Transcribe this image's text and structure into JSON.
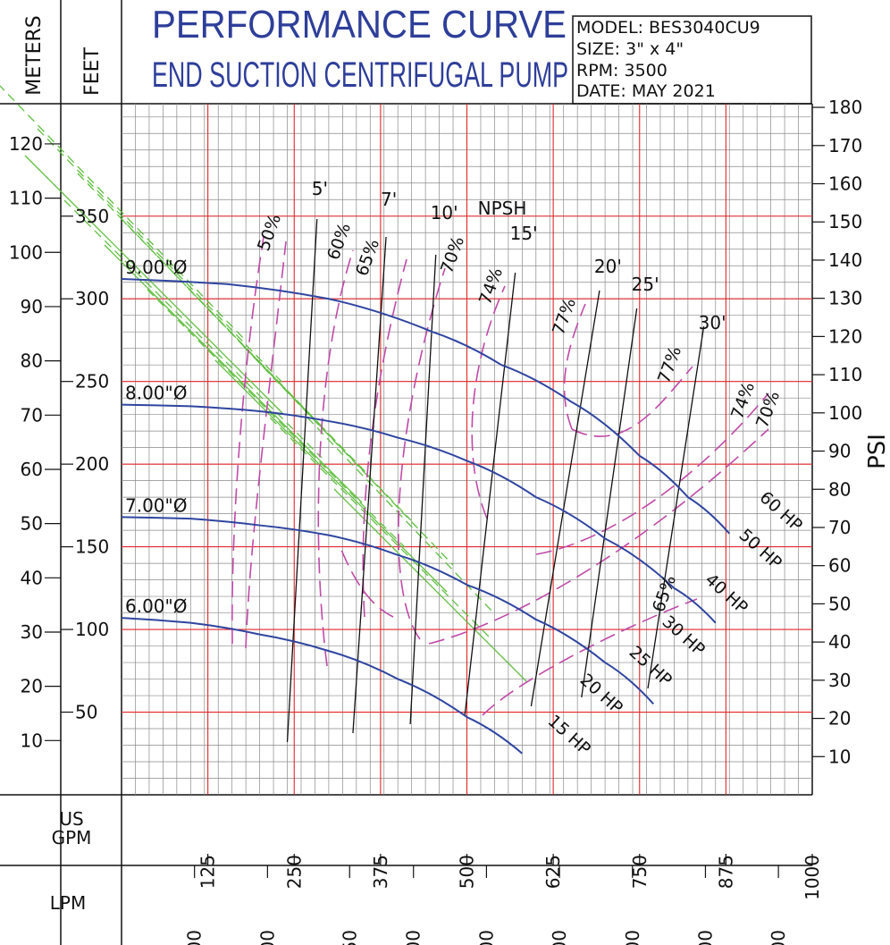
{
  "chart_data": {
    "type": "line",
    "title": "PERFORMANCE CURVE",
    "subtitle": "END SUCTION CENTRIFUGAL PUMP",
    "info": [
      "MODEL: BES3040CU9",
      "SIZE: 3\" x 4\"",
      "RPM: 3500",
      "DATE: MAY 2021"
    ],
    "axes": {
      "meters_label": "METERS",
      "feet_label": "FEET",
      "psi_label": "PSI",
      "gpm_label": [
        "US",
        "GPM"
      ],
      "lpm_label": "LPM",
      "gpm_range": [
        0,
        1000
      ],
      "feet_range": [
        0,
        418
      ],
      "meters_ticks": [
        10,
        20,
        30,
        40,
        50,
        60,
        70,
        80,
        90,
        100,
        110,
        120
      ],
      "feet_ticks": [
        50,
        100,
        150,
        200,
        250,
        300,
        350
      ],
      "psi_ticks": [
        10,
        20,
        30,
        40,
        50,
        60,
        70,
        80,
        90,
        100,
        110,
        120,
        130,
        140,
        150,
        160,
        170,
        180
      ],
      "gpm_ticks": [
        125,
        250,
        375,
        500,
        625,
        750,
        875,
        1000
      ],
      "lpm_ticks": [
        400,
        800,
        1250,
        1600,
        2000,
        2400,
        2800,
        3200,
        3600
      ],
      "grid": true
    },
    "series": [
      {
        "name": "9.00\"Ø",
        "x": [
          0,
          150,
          300,
          450,
          550,
          650,
          750,
          820,
          880
        ],
        "y": [
          312,
          309,
          300,
          280,
          260,
          238,
          205,
          180,
          158
        ]
      },
      {
        "name": "8.00\"Ø",
        "x": [
          0,
          100,
          200,
          300,
          400,
          500,
          600,
          700,
          800,
          860
        ],
        "y": [
          236,
          235,
          232,
          226,
          216,
          202,
          180,
          155,
          125,
          104
        ]
      },
      {
        "name": "7.00\"Ø",
        "x": [
          0,
          100,
          200,
          300,
          400,
          500,
          600,
          700,
          770
        ],
        "y": [
          168,
          167,
          163,
          157,
          145,
          127,
          106,
          80,
          55
        ]
      },
      {
        "name": "6.00\"Ø",
        "x": [
          0,
          100,
          200,
          300,
          400,
          500,
          580
        ],
        "y": [
          107,
          104,
          97,
          87,
          70,
          47,
          25
        ]
      }
    ],
    "npsh": {
      "label": "NPSH",
      "lines": [
        {
          "name": "5'",
          "x": [
            240,
            283
          ]
        },
        {
          "name": "7'",
          "x": [
            335,
            383
          ]
        },
        {
          "name": "10'",
          "x": [
            418,
            455
          ]
        },
        {
          "name": "15'",
          "x": [
            497,
            570
          ]
        },
        {
          "name": "20'",
          "x": [
            593,
            692
          ]
        },
        {
          "name": "25'",
          "x": [
            666,
            746
          ]
        },
        {
          "name": "30'",
          "x": [
            762,
            843
          ]
        }
      ]
    },
    "efficiency": [
      "50%",
      "60%",
      "65%",
      "70%",
      "74%",
      "77%",
      "77%",
      "74%",
      "70%",
      "65%"
    ],
    "horsepower": [
      "15 HP",
      "20 HP",
      "25 HP",
      "30 HP",
      "40 HP",
      "50 HP",
      "60 HP"
    ],
    "colors": {
      "head": "#2f45a0",
      "grid_major": "#e2272a",
      "grid_minor": "#8a8a8a",
      "efficiency": "#c04aa8",
      "hp": "#5fbf3f",
      "npsh": "#111111",
      "title": "#2e3e9a"
    }
  }
}
